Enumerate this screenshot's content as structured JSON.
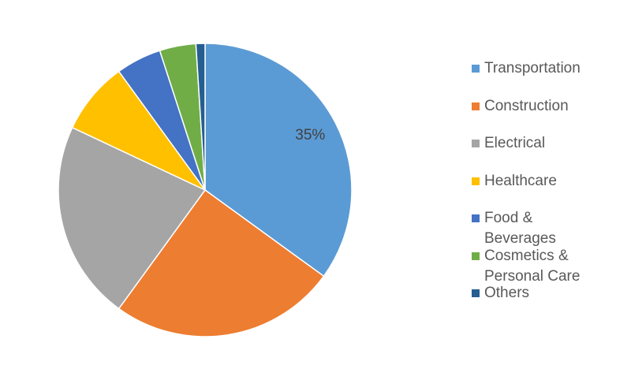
{
  "chart_data": {
    "type": "pie",
    "categories": [
      "Transportation",
      "Construction",
      "Electrical",
      "Healthcare",
      "Food & Beverages",
      "Cosmetics & Personal Care",
      "Others"
    ],
    "values": [
      35,
      25,
      22,
      8,
      5,
      4,
      1
    ],
    "value_labels": [
      "35%",
      null,
      null,
      null,
      null,
      null,
      null
    ],
    "colors": [
      "#5b9bd5",
      "#ed7d31",
      "#a5a5a5",
      "#ffc000",
      "#4472c4",
      "#70ad47",
      "#255e91"
    ],
    "legend": "right"
  }
}
